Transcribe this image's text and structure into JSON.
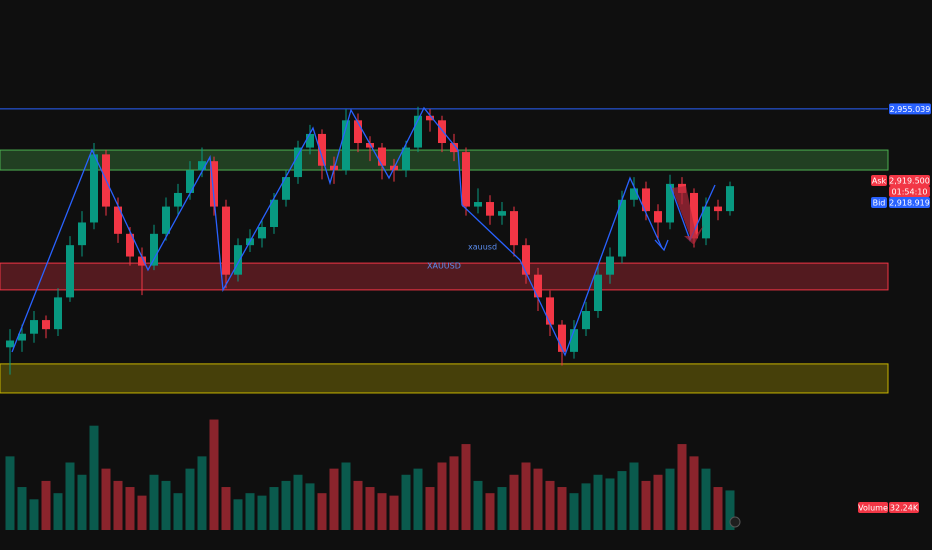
{
  "chart_data": {
    "type": "candlestick",
    "ylim": [
      2829,
      3003
    ],
    "up_color": "#089981",
    "down_color": "#f23645",
    "candles": [
      [
        2850,
        2858,
        2838,
        2853
      ],
      [
        2853,
        2860,
        2848,
        2856
      ],
      [
        2856,
        2866,
        2852,
        2862
      ],
      [
        2862,
        2864,
        2854,
        2858
      ],
      [
        2858,
        2876,
        2855,
        2872
      ],
      [
        2872,
        2899,
        2870,
        2895
      ],
      [
        2895,
        2910,
        2890,
        2905
      ],
      [
        2905,
        2940,
        2902,
        2935
      ],
      [
        2935,
        2937,
        2908,
        2912
      ],
      [
        2912,
        2916,
        2896,
        2900
      ],
      [
        2900,
        2903,
        2886,
        2890
      ],
      [
        2890,
        2894,
        2873,
        2886
      ],
      [
        2886,
        2904,
        2884,
        2900
      ],
      [
        2900,
        2916,
        2897,
        2912
      ],
      [
        2912,
        2922,
        2908,
        2918
      ],
      [
        2918,
        2932,
        2915,
        2928
      ],
      [
        2928,
        2938,
        2925,
        2932
      ],
      [
        2932,
        2934,
        2908,
        2912
      ],
      [
        2912,
        2915,
        2876,
        2882
      ],
      [
        2882,
        2898,
        2879,
        2895
      ],
      [
        2895,
        2902,
        2892,
        2898
      ],
      [
        2898,
        2906,
        2894,
        2903
      ],
      [
        2903,
        2918,
        2900,
        2915
      ],
      [
        2915,
        2928,
        2912,
        2925
      ],
      [
        2925,
        2941,
        2922,
        2938
      ],
      [
        2938,
        2948,
        2935,
        2944
      ],
      [
        2944,
        2946,
        2924,
        2930
      ],
      [
        2930,
        2934,
        2922,
        2928
      ],
      [
        2928,
        2955,
        2926,
        2950
      ],
      [
        2950,
        2953,
        2936,
        2940
      ],
      [
        2940,
        2943,
        2932,
        2938
      ],
      [
        2938,
        2940,
        2924,
        2930
      ],
      [
        2930,
        2933,
        2923,
        2928
      ],
      [
        2928,
        2941,
        2925,
        2938
      ],
      [
        2938,
        2956,
        2936,
        2952
      ],
      [
        2952,
        2955,
        2945,
        2950
      ],
      [
        2950,
        2952,
        2936,
        2940
      ],
      [
        2940,
        2944,
        2932,
        2936
      ],
      [
        2936,
        2938,
        2908,
        2912
      ],
      [
        2912,
        2920,
        2909,
        2914
      ],
      [
        2914,
        2917,
        2904,
        2908
      ],
      [
        2908,
        2914,
        2904,
        2910
      ],
      [
        2910,
        2912,
        2890,
        2895
      ],
      [
        2895,
        2898,
        2878,
        2882
      ],
      [
        2882,
        2885,
        2866,
        2872
      ],
      [
        2872,
        2875,
        2855,
        2860
      ],
      [
        2860,
        2862,
        2842,
        2848
      ],
      [
        2848,
        2862,
        2845,
        2858
      ],
      [
        2858,
        2870,
        2855,
        2866
      ],
      [
        2866,
        2886,
        2863,
        2882
      ],
      [
        2882,
        2894,
        2878,
        2890
      ],
      [
        2890,
        2919,
        2887,
        2915
      ],
      [
        2915,
        2925,
        2912,
        2920
      ],
      [
        2920,
        2923,
        2906,
        2910
      ],
      [
        2910,
        2913,
        2898,
        2905
      ],
      [
        2905,
        2926,
        2902,
        2922
      ],
      [
        2922,
        2925,
        2913,
        2918
      ],
      [
        2918,
        2920,
        2894,
        2898
      ],
      [
        2898,
        2916,
        2895,
        2912
      ],
      [
        2912,
        2915,
        2906,
        2910
      ],
      [
        2910,
        2923,
        2908,
        2921
      ]
    ],
    "volume": {
      "name": "Volume",
      "ylim": [
        0,
        110000
      ],
      "last_label": "32.24K",
      "values": [
        60000,
        35000,
        25000,
        40000,
        30000,
        55000,
        45000,
        85000,
        50000,
        40000,
        35000,
        28000,
        45000,
        40000,
        30000,
        50000,
        60000,
        90000,
        35000,
        25000,
        30000,
        28000,
        35000,
        40000,
        45000,
        38000,
        30000,
        50000,
        55000,
        40000,
        35000,
        30000,
        28000,
        45000,
        50000,
        35000,
        55000,
        60000,
        70000,
        40000,
        30000,
        35000,
        45000,
        55000,
        50000,
        40000,
        35000,
        30000,
        38000,
        45000,
        42000,
        48000,
        55000,
        40000,
        45000,
        50000,
        70000,
        60000,
        50000,
        35000,
        32240
      ]
    },
    "zones": [
      {
        "top": 2936.9,
        "bottom": 2928.1,
        "color": "#4caf50"
      },
      {
        "top": 2887.1,
        "bottom": 2875.3,
        "color": "#f23645"
      },
      {
        "top": 2842.7,
        "bottom": 2829.9,
        "color": "#c8b400"
      }
    ],
    "price_line": {
      "value": 2955.039,
      "label": "2,955.039",
      "color": "#2962ff"
    },
    "ask": {
      "name": "Ask",
      "value": 2919.5,
      "label": "2,919.500",
      "color": "#f23645"
    },
    "countdown": "01:54:10",
    "bid": {
      "name": "Bid",
      "value": 2918.919,
      "label": "2,918.919",
      "color": "#2962ff"
    },
    "annotations": [
      "xauusd",
      "XAUUSD"
    ]
  }
}
